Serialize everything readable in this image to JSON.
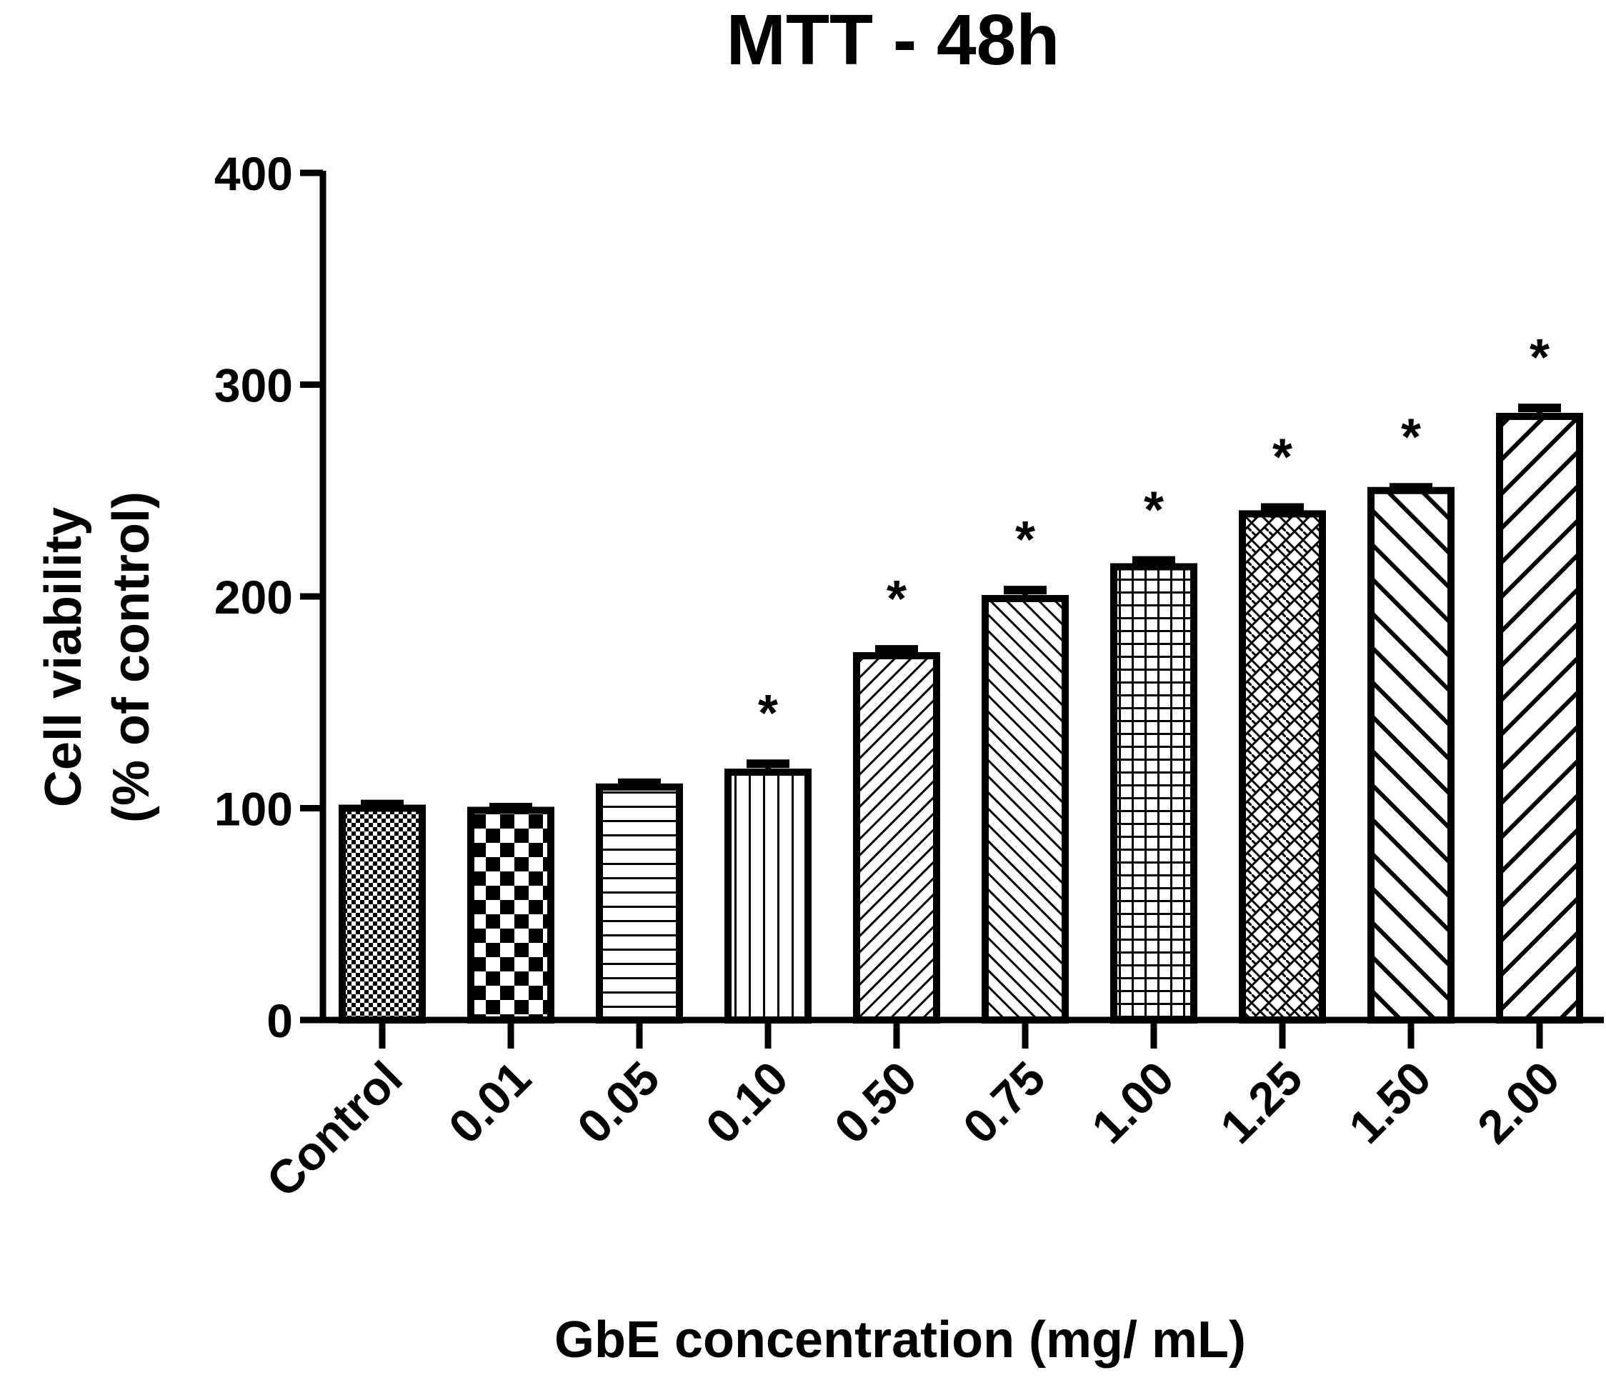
{
  "chart_data": {
    "type": "bar",
    "title": "MTT - 48h",
    "xlabel": "GbE concentration (mg/ mL)",
    "ylabel_line1": "Cell viability",
    "ylabel_line2": "(% of control)",
    "ylim": [
      0,
      400
    ],
    "yticks": [
      {
        "value": 0,
        "label": "0"
      },
      {
        "value": 100,
        "label": "100"
      },
      {
        "value": 200,
        "label": "200"
      },
      {
        "value": 300,
        "label": "300"
      },
      {
        "value": 400,
        "label": "400"
      }
    ],
    "categories": [
      "Control",
      "0.01",
      "0.05",
      "0.10",
      "0.50",
      "0.75",
      "1.00",
      "1.25",
      "1.50",
      "2.00"
    ],
    "values": [
      100,
      99,
      110,
      117,
      172,
      199,
      214,
      239,
      250,
      285
    ],
    "errors": [
      2,
      1.5,
      2,
      4,
      3,
      4,
      3,
      3,
      1.5,
      4
    ],
    "significance": [
      "",
      "",
      "",
      "*",
      "*",
      "*",
      "*",
      "*",
      "*",
      "*"
    ],
    "patterns": [
      "fine-checker",
      "checker",
      "horizontal-lines",
      "vertical-lines",
      "diagonal-fine",
      "diagonal-back",
      "grid",
      "diamond-lattice",
      "diagonal-back-wide",
      "diagonal-wide"
    ],
    "bar_color": "#000000",
    "background": "#ffffff"
  }
}
